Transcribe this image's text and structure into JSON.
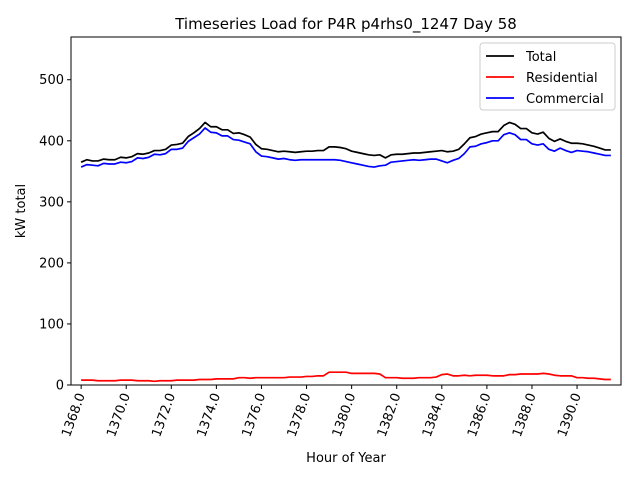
{
  "chart_data": {
    "type": "line",
    "title": "Timeseries Load for P4R p4rhs0_1247  Day 58",
    "xlabel": "Hour of Year",
    "ylabel": "kW total",
    "xlim": [
      1367.55,
      1391.95
    ],
    "ylim": [
      0,
      570
    ],
    "xticks": [
      1368,
      1370,
      1372,
      1374,
      1376,
      1378,
      1380,
      1382,
      1384,
      1386,
      1388,
      1390
    ],
    "xtick_labels": [
      "1368.0",
      "1370.0",
      "1372.0",
      "1374.0",
      "1376.0",
      "1378.0",
      "1380.0",
      "1382.0",
      "1384.0",
      "1386.0",
      "1388.0",
      "1390.0"
    ],
    "yticks": [
      0,
      100,
      200,
      300,
      400,
      500
    ],
    "ytick_labels": [
      "0",
      "100",
      "200",
      "300",
      "400",
      "500"
    ],
    "grid": false,
    "legend_position": "top-right",
    "x": [
      1368.0,
      1368.25,
      1368.5,
      1368.75,
      1369.0,
      1369.25,
      1369.5,
      1369.75,
      1370.0,
      1370.25,
      1370.5,
      1370.75,
      1371.0,
      1371.25,
      1371.5,
      1371.75,
      1372.0,
      1372.25,
      1372.5,
      1372.75,
      1373.0,
      1373.25,
      1373.5,
      1373.75,
      1374.0,
      1374.25,
      1374.5,
      1374.75,
      1375.0,
      1375.25,
      1375.5,
      1375.75,
      1376.0,
      1376.25,
      1376.5,
      1376.75,
      1377.0,
      1377.25,
      1377.5,
      1377.75,
      1378.0,
      1378.25,
      1378.5,
      1378.75,
      1379.0,
      1379.25,
      1379.5,
      1379.75,
      1380.0,
      1380.25,
      1380.5,
      1380.75,
      1381.0,
      1381.25,
      1381.5,
      1381.75,
      1382.0,
      1382.25,
      1382.5,
      1382.75,
      1383.0,
      1383.25,
      1383.5,
      1383.75,
      1384.0,
      1384.25,
      1384.5,
      1384.75,
      1385.0,
      1385.25,
      1385.5,
      1385.75,
      1386.0,
      1386.25,
      1386.5,
      1386.75,
      1387.0,
      1387.25,
      1387.5,
      1387.75,
      1388.0,
      1388.25,
      1388.5,
      1388.75,
      1389.0,
      1389.25,
      1389.5,
      1389.75,
      1390.0,
      1390.25,
      1390.5,
      1390.75,
      1391.0,
      1391.25,
      1391.5
    ],
    "series": [
      {
        "name": "Total",
        "color": "#000000",
        "values": [
          365,
          369,
          367,
          367,
          370,
          369,
          369,
          373,
          372,
          374,
          379,
          378,
          380,
          384,
          384,
          386,
          393,
          394,
          396,
          407,
          413,
          420,
          430,
          423,
          423,
          418,
          418,
          412,
          413,
          410,
          406,
          394,
          387,
          386,
          384,
          382,
          383,
          382,
          381,
          382,
          383,
          383,
          384,
          384,
          390,
          390,
          389,
          387,
          383,
          381,
          379,
          377,
          376,
          377,
          372,
          377,
          378,
          378,
          379,
          380,
          380,
          381,
          382,
          383,
          384,
          382,
          383,
          386,
          395,
          405,
          407,
          411,
          413,
          415,
          415,
          425,
          430,
          427,
          420,
          420,
          413,
          411,
          414,
          404,
          399,
          403,
          399,
          396,
          396,
          395,
          393,
          391,
          388,
          385,
          385
        ]
      },
      {
        "name": "Residential",
        "color": "#ff0000",
        "values": [
          8,
          8,
          8,
          7,
          7,
          7,
          7,
          8,
          8,
          8,
          7,
          7,
          7,
          6,
          7,
          7,
          7,
          8,
          8,
          8,
          8,
          9,
          9,
          9,
          10,
          10,
          10,
          10,
          12,
          12,
          11,
          12,
          12,
          12,
          12,
          12,
          12,
          13,
          13,
          13,
          14,
          14,
          15,
          15,
          21,
          21,
          21,
          21,
          19,
          19,
          19,
          19,
          19,
          18,
          12,
          12,
          12,
          11,
          11,
          11,
          12,
          12,
          12,
          13,
          17,
          18,
          15,
          15,
          16,
          15,
          16,
          16,
          16,
          15,
          15,
          15,
          17,
          17,
          18,
          18,
          18,
          18,
          19,
          18,
          16,
          15,
          15,
          15,
          12,
          12,
          11,
          11,
          10,
          9,
          9
        ]
      },
      {
        "name": "Commercial",
        "color": "#0000ff",
        "values": [
          357,
          361,
          360,
          359,
          363,
          362,
          362,
          365,
          364,
          366,
          372,
          371,
          373,
          378,
          377,
          379,
          386,
          386,
          388,
          399,
          405,
          411,
          421,
          414,
          413,
          408,
          408,
          402,
          401,
          398,
          395,
          382,
          375,
          374,
          372,
          370,
          371,
          369,
          368,
          369,
          369,
          369,
          369,
          369,
          369,
          369,
          368,
          366,
          364,
          362,
          360,
          358,
          357,
          359,
          360,
          365,
          366,
          367,
          368,
          369,
          368,
          369,
          370,
          370,
          367,
          364,
          368,
          371,
          379,
          390,
          391,
          395,
          397,
          400,
          400,
          410,
          413,
          410,
          402,
          402,
          395,
          393,
          395,
          386,
          383,
          388,
          384,
          381,
          384,
          383,
          382,
          380,
          378,
          376,
          376
        ]
      }
    ]
  }
}
